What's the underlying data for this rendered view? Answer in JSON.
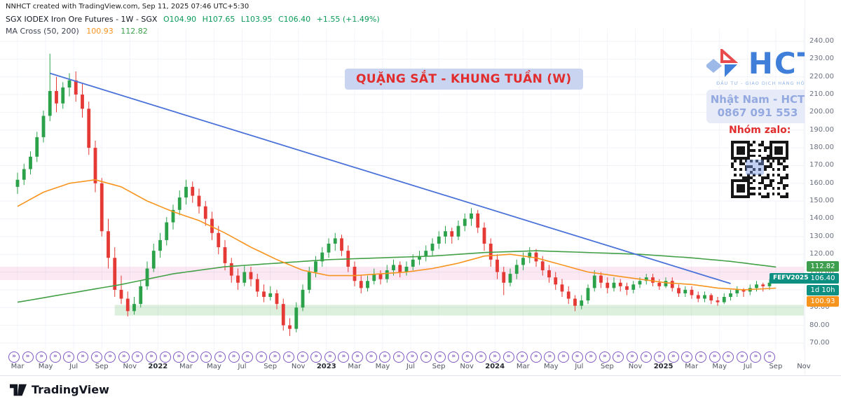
{
  "meta_note": "NNHCT created with TradingView.com, Sep 11, 2025 07:46 UTC+5:30",
  "legend": {
    "symbol": "SGX IODEX Iron Ore Futures - 1W - SGX",
    "open": "O104.90",
    "high": "H107.65",
    "low": "L103.95",
    "close": "C106.40",
    "change": "+1.55 (+1.49%)"
  },
  "ma_legend": {
    "label": "MA Cross (50, 200)",
    "ma50": "100.93",
    "ma200": "112.82"
  },
  "overlays": {
    "title": "QUẶNG SẮT - KHUNG TUẦN (W)",
    "brand": {
      "name": "HCT",
      "tagline": "ĐẦU TƯ - GIAO DỊCH HÀNG HÓA"
    },
    "contact_line1": "Nhật Nam - HCT",
    "contact_line2": "0867 091 553",
    "zalo_label": "Nhóm zalo:"
  },
  "price_axis": {
    "tags": {
      "ma200": {
        "text": "112.82",
        "value": 112.82,
        "color": "#3d9f4e"
      },
      "last": {
        "text": "106.40",
        "value": 106.4,
        "color": "#0d8f82",
        "contract": "FEFV2025"
      },
      "countdown": {
        "text": "1d 10h",
        "color": "#0d8f82"
      },
      "ma50": {
        "text": "100.93",
        "value": 100.93,
        "color": "#f7941e"
      }
    }
  },
  "time_axis": {
    "labels": [
      {
        "label": "Mar"
      },
      {
        "label": "May"
      },
      {
        "label": "Jul"
      },
      {
        "label": "Sep"
      },
      {
        "label": "Nov"
      },
      {
        "label": "2022",
        "year": true
      },
      {
        "label": "Mar"
      },
      {
        "label": "May"
      },
      {
        "label": "Jul"
      },
      {
        "label": "Sep"
      },
      {
        "label": "Nov"
      },
      {
        "label": "2023",
        "year": true
      },
      {
        "label": "Mar"
      },
      {
        "label": "May"
      },
      {
        "label": "Jul"
      },
      {
        "label": "Sep"
      },
      {
        "label": "Nov"
      },
      {
        "label": "2024",
        "year": true
      },
      {
        "label": "Mar"
      },
      {
        "label": "May"
      },
      {
        "label": "Jul"
      },
      {
        "label": "Sep"
      },
      {
        "label": "Nov"
      },
      {
        "label": "2025",
        "year": true
      },
      {
        "label": "Mar"
      },
      {
        "label": "May"
      },
      {
        "label": "Jul"
      },
      {
        "label": "Sep"
      },
      {
        "label": "Nov"
      }
    ]
  },
  "replay_markers": {
    "glyph": "»",
    "count": 56,
    "color": "#7e57c2"
  },
  "footer": {
    "brand": "TradingView"
  },
  "chart_data": {
    "type": "candlestick",
    "symbol": "SGX IODEX Iron Ore Futures",
    "exchange": "SGX",
    "timeframe": "1W",
    "title": "QUẶNG SẮT - KHUNG TUẦN (W)",
    "last_bar": {
      "open": 104.9,
      "high": 107.65,
      "low": 103.95,
      "close": 106.4,
      "change_abs": 1.55,
      "change_pct": 1.49
    },
    "indicators": {
      "ma_cross": {
        "fast": 50,
        "slow": 200,
        "ma50_last": 100.93,
        "ma200_last": 112.82
      }
    },
    "ylim": [
      65,
      247
    ],
    "y_ticks": [
      240,
      230,
      220,
      210,
      200,
      190,
      180,
      170,
      160,
      150,
      140,
      130,
      120,
      110,
      100,
      90,
      80,
      70
    ],
    "x_range": [
      "Mar 2021",
      "Sep 2025"
    ],
    "candles": [
      [
        158,
        166,
        154,
        162
      ],
      [
        162,
        171,
        159,
        168
      ],
      [
        168,
        178,
        165,
        175
      ],
      [
        175,
        189,
        172,
        186
      ],
      [
        186,
        201,
        183,
        198
      ],
      [
        198,
        233,
        195,
        212
      ],
      [
        212,
        220,
        200,
        205
      ],
      [
        205,
        217,
        202,
        214
      ],
      [
        214,
        222,
        209,
        218
      ],
      [
        218,
        223,
        206,
        210
      ],
      [
        210,
        216,
        197,
        202
      ],
      [
        202,
        206,
        176,
        180
      ],
      [
        180,
        184,
        155,
        160
      ],
      [
        160,
        163,
        130,
        133
      ],
      [
        133,
        140,
        112,
        118
      ],
      [
        118,
        124,
        96,
        100
      ],
      [
        100,
        108,
        92,
        95
      ],
      [
        95,
        99,
        85,
        88
      ],
      [
        88,
        96,
        86,
        92
      ],
      [
        92,
        105,
        90,
        102
      ],
      [
        102,
        116,
        100,
        112
      ],
      [
        112,
        126,
        110,
        122
      ],
      [
        122,
        132,
        118,
        128
      ],
      [
        128,
        141,
        125,
        138
      ],
      [
        138,
        148,
        134,
        145
      ],
      [
        145,
        156,
        142,
        152
      ],
      [
        152,
        162,
        148,
        158
      ],
      [
        158,
        161,
        149,
        153
      ],
      [
        153,
        157,
        143,
        147
      ],
      [
        147,
        150,
        136,
        140
      ],
      [
        140,
        144,
        128,
        132
      ],
      [
        132,
        136,
        120,
        124
      ],
      [
        124,
        128,
        111,
        115
      ],
      [
        115,
        118,
        104,
        108
      ],
      [
        108,
        112,
        100,
        104
      ],
      [
        104,
        114,
        102,
        110
      ],
      [
        110,
        113,
        102,
        106
      ],
      [
        106,
        109,
        96,
        99
      ],
      [
        99,
        103,
        93,
        96
      ],
      [
        96,
        102,
        94,
        98
      ],
      [
        98,
        100,
        89,
        92
      ],
      [
        92,
        95,
        77,
        80
      ],
      [
        80,
        84,
        74,
        78
      ],
      [
        78,
        93,
        76,
        90
      ],
      [
        90,
        103,
        88,
        100
      ],
      [
        100,
        113,
        98,
        110
      ],
      [
        110,
        119,
        107,
        116
      ],
      [
        116,
        124,
        113,
        121
      ],
      [
        121,
        129,
        118,
        126
      ],
      [
        126,
        132,
        122,
        129
      ],
      [
        129,
        131,
        119,
        122
      ],
      [
        122,
        125,
        110,
        113
      ],
      [
        113,
        116,
        102,
        105
      ],
      [
        105,
        108,
        98,
        101
      ],
      [
        101,
        108,
        99,
        105
      ],
      [
        105,
        112,
        103,
        109
      ],
      [
        109,
        111,
        103,
        106
      ],
      [
        106,
        114,
        104,
        111
      ],
      [
        111,
        117,
        108,
        114
      ],
      [
        114,
        116,
        107,
        110
      ],
      [
        110,
        116,
        108,
        113
      ],
      [
        113,
        120,
        111,
        117
      ],
      [
        117,
        122,
        114,
        119
      ],
      [
        119,
        125,
        116,
        122
      ],
      [
        122,
        129,
        119,
        126
      ],
      [
        126,
        133,
        123,
        130
      ],
      [
        130,
        136,
        126,
        133
      ],
      [
        133,
        135,
        126,
        130
      ],
      [
        130,
        139,
        128,
        136
      ],
      [
        136,
        143,
        133,
        140
      ],
      [
        140,
        146,
        136,
        143
      ],
      [
        143,
        145,
        132,
        135
      ],
      [
        135,
        138,
        122,
        126
      ],
      [
        126,
        129,
        113,
        117
      ],
      [
        117,
        120,
        106,
        110
      ],
      [
        110,
        113,
        97,
        104
      ],
      [
        104,
        112,
        102,
        109
      ],
      [
        109,
        117,
        106,
        114
      ],
      [
        114,
        121,
        111,
        118
      ],
      [
        118,
        124,
        115,
        121
      ],
      [
        121,
        123,
        113,
        116
      ],
      [
        116,
        119,
        108,
        111
      ],
      [
        111,
        114,
        104,
        107
      ],
      [
        107,
        110,
        100,
        103
      ],
      [
        103,
        106,
        96,
        99
      ],
      [
        99,
        102,
        92,
        95
      ],
      [
        95,
        97,
        88,
        91
      ],
      [
        91,
        97,
        89,
        94
      ],
      [
        94,
        103,
        92,
        101
      ],
      [
        101,
        111,
        99,
        108
      ],
      [
        108,
        110,
        101,
        104
      ],
      [
        104,
        107,
        98,
        101
      ],
      [
        101,
        107,
        99,
        104
      ],
      [
        104,
        106,
        99,
        102
      ],
      [
        102,
        104,
        97,
        100
      ],
      [
        100,
        105,
        98,
        103
      ],
      [
        103,
        107,
        101,
        105
      ],
      [
        105,
        109,
        103,
        107
      ],
      [
        107,
        109,
        102,
        104
      ],
      [
        104,
        106,
        100,
        102
      ],
      [
        102,
        107,
        101,
        105
      ],
      [
        105,
        107,
        99,
        101
      ],
      [
        101,
        103,
        96,
        98
      ],
      [
        98,
        102,
        96,
        100
      ],
      [
        100,
        102,
        95,
        97
      ],
      [
        97,
        99,
        93,
        95
      ],
      [
        95,
        99,
        93,
        97
      ],
      [
        97,
        98,
        92,
        94
      ],
      [
        94,
        96,
        91,
        93
      ],
      [
        93,
        98,
        92,
        96
      ],
      [
        96,
        100,
        94,
        98
      ],
      [
        98,
        102,
        96,
        100
      ],
      [
        100,
        101,
        96,
        99
      ],
      [
        99,
        103,
        97,
        101
      ],
      [
        101,
        105,
        99,
        103
      ],
      [
        103,
        104,
        99,
        102
      ],
      [
        102,
        106,
        100,
        104
      ],
      [
        104.9,
        107.65,
        103.95,
        106.4
      ]
    ],
    "ma50_points": [
      [
        0,
        147
      ],
      [
        4,
        155
      ],
      [
        8,
        160
      ],
      [
        12,
        162
      ],
      [
        16,
        158
      ],
      [
        20,
        150
      ],
      [
        24,
        144
      ],
      [
        28,
        139
      ],
      [
        32,
        132
      ],
      [
        36,
        124
      ],
      [
        40,
        117
      ],
      [
        44,
        111
      ],
      [
        48,
        108
      ],
      [
        52,
        108
      ],
      [
        56,
        109
      ],
      [
        60,
        110
      ],
      [
        64,
        112
      ],
      [
        68,
        115
      ],
      [
        72,
        119
      ],
      [
        76,
        120
      ],
      [
        80,
        118
      ],
      [
        84,
        114
      ],
      [
        88,
        110
      ],
      [
        92,
        108
      ],
      [
        96,
        106
      ],
      [
        100,
        104
      ],
      [
        104,
        103
      ],
      [
        108,
        101
      ],
      [
        112,
        100
      ],
      [
        117,
        100.93
      ]
    ],
    "ma200_points": [
      [
        0,
        93
      ],
      [
        8,
        98
      ],
      [
        16,
        103
      ],
      [
        24,
        109
      ],
      [
        32,
        113
      ],
      [
        40,
        115
      ],
      [
        48,
        117
      ],
      [
        56,
        118
      ],
      [
        64,
        119
      ],
      [
        72,
        121
      ],
      [
        80,
        122
      ],
      [
        88,
        121
      ],
      [
        96,
        120
      ],
      [
        104,
        118
      ],
      [
        110,
        116
      ],
      [
        117,
        112.82
      ]
    ],
    "trendline": {
      "points": [
        [
          5,
          222
        ],
        [
          110,
          103.5
        ]
      ],
      "color": "#4a72d8"
    },
    "zones": [
      {
        "name": "resistance-zone",
        "top": 113,
        "bottom": 105.5,
        "start_index": 0,
        "color": "rgba(224,64,160,0.12)"
      },
      {
        "name": "support-zone",
        "top": 91.5,
        "bottom": 85.5,
        "start_index": 15,
        "color": "rgba(102,187,106,0.22)"
      }
    ],
    "colors": {
      "up": "#2ba24a",
      "down": "#e53935",
      "ma50": "#f7941e",
      "ma200": "#43a047"
    }
  }
}
